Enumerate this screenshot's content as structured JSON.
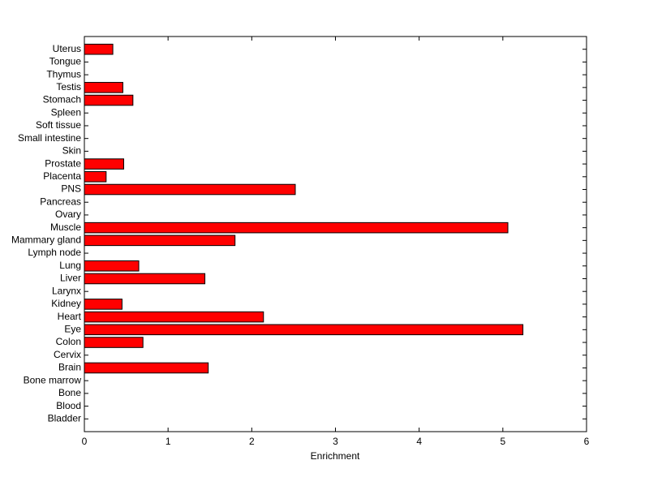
{
  "chart_data": {
    "type": "barh",
    "xlabel": "Enrichment",
    "categories": [
      "Bladder",
      "Blood",
      "Bone",
      "Bone marrow",
      "Brain",
      "Cervix",
      "Colon",
      "Eye",
      "Heart",
      "Kidney",
      "Larynx",
      "Liver",
      "Lung",
      "Lymph node",
      "Mammary gland",
      "Muscle",
      "Ovary",
      "Pancreas",
      "PNS",
      "Placenta",
      "Prostate",
      "Skin",
      "Small intestine",
      "Soft tissue",
      "Spleen",
      "Stomach",
      "Testis",
      "Thymus",
      "Tongue",
      "Uterus"
    ],
    "values": [
      0,
      0,
      0,
      0,
      1.48,
      0,
      0.7,
      5.24,
      2.14,
      0.45,
      0,
      1.44,
      0.65,
      0,
      1.8,
      5.06,
      0,
      0,
      2.52,
      0.26,
      0.47,
      0,
      0,
      0,
      0,
      0.58,
      0.46,
      0,
      0,
      0.34
    ],
    "color": "#ff0000",
    "xlim": [
      0,
      6
    ],
    "xticks": [
      0,
      1,
      2,
      3,
      4,
      5,
      6
    ]
  }
}
